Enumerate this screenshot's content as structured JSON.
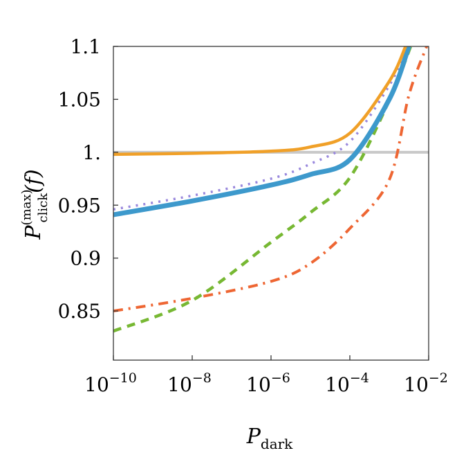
{
  "chart_data": {
    "type": "line",
    "title": "",
    "xlabel": {
      "main": "P",
      "sub": "dark"
    },
    "ylabel": {
      "main": "P",
      "sup": "(max)",
      "sub": "click",
      "arg": "(f)"
    },
    "xscale": "log",
    "xlim": [
      1e-10,
      0.01
    ],
    "ylim": [
      0.8036,
      1.1
    ],
    "grid": false,
    "legend": "none",
    "xticks": [
      {
        "value": 1e-10,
        "base": "10",
        "exp": "−10"
      },
      {
        "value": 1e-08,
        "base": "10",
        "exp": "−8"
      },
      {
        "value": 1e-06,
        "base": "10",
        "exp": "−6"
      },
      {
        "value": 0.0001,
        "base": "10",
        "exp": "−4"
      },
      {
        "value": 0.01,
        "base": "10",
        "exp": "−2"
      }
    ],
    "yticks": [
      {
        "value": 1.1,
        "label": "1.1"
      },
      {
        "value": 1.05,
        "label": "1.05"
      },
      {
        "value": 1.0,
        "label": "1."
      },
      {
        "value": 0.95,
        "label": "0.95"
      },
      {
        "value": 0.9,
        "label": "0.9"
      },
      {
        "value": 0.85,
        "label": "0.85"
      }
    ],
    "reference_line": {
      "y": 1.0,
      "color": "#c8c8c8"
    },
    "series": [
      {
        "style": "dash-dot",
        "color": "#ee6633",
        "x": [
          1e-10,
          1e-08,
          1e-06,
          1e-05,
          0.0001,
          0.001,
          0.00316,
          0.0089
        ],
        "y": [
          0.85,
          0.862,
          0.878,
          0.895,
          0.928,
          0.974,
          1.054,
          1.1
        ]
      },
      {
        "style": "dashed",
        "color": "#77b833",
        "x": [
          1e-10,
          1e-08,
          1e-06,
          1e-05,
          0.0001,
          0.001,
          0.0035
        ],
        "y": [
          0.831,
          0.86,
          0.915,
          0.943,
          0.976,
          1.049,
          1.1
        ]
      },
      {
        "style": "dotted",
        "color": "#9988dd",
        "x": [
          1e-10,
          1e-08,
          1e-06,
          1e-05,
          0.0001,
          0.001,
          0.003
        ],
        "y": [
          0.946,
          0.959,
          0.975,
          0.989,
          1.01,
          1.063,
          1.1
        ]
      },
      {
        "style": "solid-thick",
        "color": "#3d99cc",
        "x": [
          1e-10,
          1e-08,
          1e-06,
          1e-05,
          0.0001,
          0.001,
          0.00316
        ],
        "y": [
          0.941,
          0.954,
          0.969,
          0.979,
          0.993,
          1.05,
          1.1
        ]
      },
      {
        "style": "solid",
        "color": "#f0a028",
        "x": [
          1e-10,
          1e-08,
          1e-06,
          1e-05,
          0.0001,
          0.001,
          0.0026
        ],
        "y": [
          0.998,
          0.999,
          1.001,
          1.005,
          1.018,
          1.067,
          1.1
        ]
      }
    ]
  }
}
